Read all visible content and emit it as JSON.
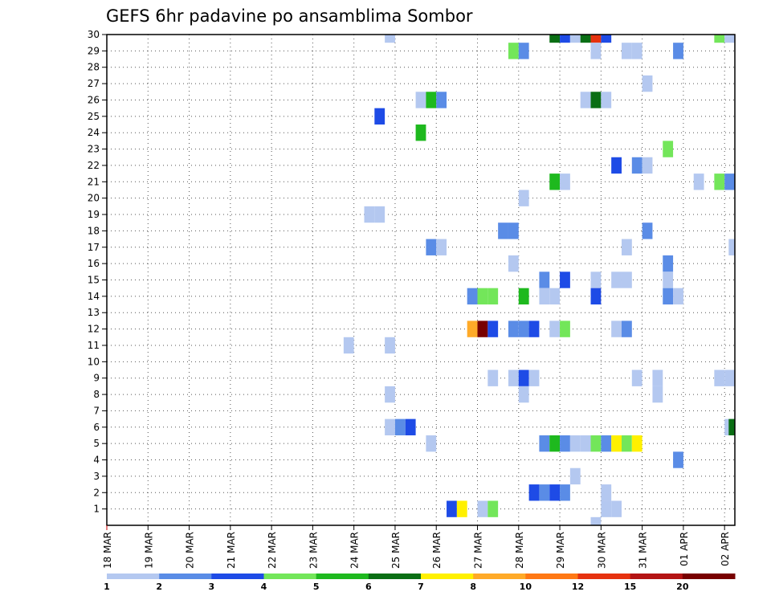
{
  "chart_data": {
    "type": "heatmap",
    "title": "GEFS 6hr padavine po ansamblima Sombor",
    "xlabel": "",
    "ylabel": "",
    "x_tick_labels": [
      "18 MAR",
      "19 MAR",
      "20 MAR",
      "21 MAR",
      "22 MAR",
      "23 MAR",
      "24 MAR",
      "25 MAR",
      "26 MAR",
      "27 MAR",
      "28 MAR",
      "29 MAR",
      "30 MAR",
      "31 MAR",
      "01 APR",
      "02 APR"
    ],
    "y_tick_labels": [
      "1",
      "2",
      "3",
      "4",
      "5",
      "6",
      "7",
      "8",
      "9",
      "10",
      "11",
      "12",
      "13",
      "14",
      "15",
      "16",
      "17",
      "18",
      "19",
      "20",
      "21",
      "22",
      "23",
      "24",
      "25",
      "26",
      "27",
      "28",
      "29",
      "30"
    ],
    "xlim": [
      0,
      61
    ],
    "ylim": [
      0,
      30
    ],
    "grid": true,
    "colorbar": {
      "labels": [
        "1",
        "2",
        "3",
        "4",
        "5",
        "6",
        "7",
        "8",
        "10",
        "12",
        "15",
        "20"
      ],
      "colors": [
        "#b4c8f0",
        "#5a8ce6",
        "#1e4be6",
        "#73e65a",
        "#1eb91e",
        "#0a6e14",
        "#fff000",
        "#ffaa28",
        "#ff7814",
        "#e6320f",
        "#b41414",
        "#780000"
      ]
    },
    "cells": [
      {
        "x": 27.5,
        "y": 30,
        "v": 1
      },
      {
        "x": 43.5,
        "y": 30,
        "v": 6
      },
      {
        "x": 44.5,
        "y": 30,
        "v": 3
      },
      {
        "x": 45.5,
        "y": 30,
        "v": 1
      },
      {
        "x": 46.5,
        "y": 30,
        "v": 6
      },
      {
        "x": 47.5,
        "y": 30,
        "v": 12
      },
      {
        "x": 48.5,
        "y": 30,
        "v": 3
      },
      {
        "x": 59.5,
        "y": 30,
        "v": 4
      },
      {
        "x": 60.5,
        "y": 30,
        "v": 1
      },
      {
        "x": 39.5,
        "y": 29,
        "v": 4
      },
      {
        "x": 40.5,
        "y": 29,
        "v": 2
      },
      {
        "x": 47.5,
        "y": 29,
        "v": 1
      },
      {
        "x": 50.5,
        "y": 29,
        "v": 1
      },
      {
        "x": 51.5,
        "y": 29,
        "v": 1
      },
      {
        "x": 55.5,
        "y": 29,
        "v": 2
      },
      {
        "x": 52.5,
        "y": 27,
        "v": 1
      },
      {
        "x": 30.5,
        "y": 26,
        "v": 1
      },
      {
        "x": 31.5,
        "y": 26,
        "v": 5
      },
      {
        "x": 32.5,
        "y": 26,
        "v": 2
      },
      {
        "x": 46.5,
        "y": 26,
        "v": 1
      },
      {
        "x": 47.5,
        "y": 26,
        "v": 6
      },
      {
        "x": 48.5,
        "y": 26,
        "v": 1
      },
      {
        "x": 26.5,
        "y": 25,
        "v": 3
      },
      {
        "x": 30.5,
        "y": 24,
        "v": 5
      },
      {
        "x": 54.5,
        "y": 23,
        "v": 4
      },
      {
        "x": 49.5,
        "y": 22,
        "v": 3
      },
      {
        "x": 51.5,
        "y": 22,
        "v": 2
      },
      {
        "x": 52.5,
        "y": 22,
        "v": 1
      },
      {
        "x": 43.5,
        "y": 21,
        "v": 5
      },
      {
        "x": 44.5,
        "y": 21,
        "v": 1
      },
      {
        "x": 57.5,
        "y": 21,
        "v": 1
      },
      {
        "x": 59.5,
        "y": 21,
        "v": 4
      },
      {
        "x": 60.5,
        "y": 21,
        "v": 2
      },
      {
        "x": 40.5,
        "y": 20,
        "v": 1
      },
      {
        "x": 25.5,
        "y": 19,
        "v": 1
      },
      {
        "x": 26.5,
        "y": 19,
        "v": 1
      },
      {
        "x": 38.5,
        "y": 18,
        "v": 2
      },
      {
        "x": 39.5,
        "y": 18,
        "v": 2
      },
      {
        "x": 52.5,
        "y": 18,
        "v": 2
      },
      {
        "x": 31.5,
        "y": 17,
        "v": 2
      },
      {
        "x": 32.5,
        "y": 17,
        "v": 1
      },
      {
        "x": 50.5,
        "y": 17,
        "v": 1
      },
      {
        "x": 60.9,
        "y": 17,
        "v": 1
      },
      {
        "x": 39.5,
        "y": 16,
        "v": 1
      },
      {
        "x": 54.5,
        "y": 16,
        "v": 2
      },
      {
        "x": 42.5,
        "y": 15,
        "v": 2
      },
      {
        "x": 44.5,
        "y": 15,
        "v": 3
      },
      {
        "x": 47.5,
        "y": 15,
        "v": 1
      },
      {
        "x": 49.5,
        "y": 15,
        "v": 1
      },
      {
        "x": 50.5,
        "y": 15,
        "v": 1
      },
      {
        "x": 54.5,
        "y": 15,
        "v": 1
      },
      {
        "x": 35.5,
        "y": 14,
        "v": 2
      },
      {
        "x": 36.5,
        "y": 14,
        "v": 4
      },
      {
        "x": 37.5,
        "y": 14,
        "v": 4
      },
      {
        "x": 40.5,
        "y": 14,
        "v": 5
      },
      {
        "x": 42.5,
        "y": 14,
        "v": 1
      },
      {
        "x": 43.5,
        "y": 14,
        "v": 1
      },
      {
        "x": 47.5,
        "y": 14,
        "v": 3
      },
      {
        "x": 54.5,
        "y": 14,
        "v": 2
      },
      {
        "x": 55.5,
        "y": 14,
        "v": 1
      },
      {
        "x": 35.5,
        "y": 12,
        "v": 8
      },
      {
        "x": 36.5,
        "y": 12,
        "v": 20
      },
      {
        "x": 37.5,
        "y": 12,
        "v": 3
      },
      {
        "x": 39.5,
        "y": 12,
        "v": 2
      },
      {
        "x": 40.5,
        "y": 12,
        "v": 2
      },
      {
        "x": 41.5,
        "y": 12,
        "v": 3
      },
      {
        "x": 43.5,
        "y": 12,
        "v": 1
      },
      {
        "x": 44.5,
        "y": 12,
        "v": 4
      },
      {
        "x": 49.5,
        "y": 12,
        "v": 1
      },
      {
        "x": 50.5,
        "y": 12,
        "v": 2
      },
      {
        "x": 23.5,
        "y": 11,
        "v": 1
      },
      {
        "x": 27.5,
        "y": 11,
        "v": 1
      },
      {
        "x": 37.5,
        "y": 9,
        "v": 1
      },
      {
        "x": 39.5,
        "y": 9,
        "v": 1
      },
      {
        "x": 40.5,
        "y": 9,
        "v": 3
      },
      {
        "x": 41.5,
        "y": 9,
        "v": 1
      },
      {
        "x": 51.5,
        "y": 9,
        "v": 1
      },
      {
        "x": 53.5,
        "y": 9,
        "v": 1
      },
      {
        "x": 59.5,
        "y": 9,
        "v": 1
      },
      {
        "x": 60.5,
        "y": 9,
        "v": 1
      },
      {
        "x": 27.5,
        "y": 8,
        "v": 1
      },
      {
        "x": 40.5,
        "y": 8,
        "v": 1
      },
      {
        "x": 53.5,
        "y": 8,
        "v": 1
      },
      {
        "x": 27.5,
        "y": 6,
        "v": 1
      },
      {
        "x": 28.5,
        "y": 6,
        "v": 2
      },
      {
        "x": 29.5,
        "y": 6,
        "v": 3
      },
      {
        "x": 60.5,
        "y": 6,
        "v": 1
      },
      {
        "x": 60.9,
        "y": 6,
        "v": 6
      },
      {
        "x": 31.5,
        "y": 5,
        "v": 1
      },
      {
        "x": 42.5,
        "y": 5,
        "v": 2
      },
      {
        "x": 43.5,
        "y": 5,
        "v": 5
      },
      {
        "x": 44.5,
        "y": 5,
        "v": 2
      },
      {
        "x": 45.5,
        "y": 5,
        "v": 1
      },
      {
        "x": 46.5,
        "y": 5,
        "v": 1
      },
      {
        "x": 47.5,
        "y": 5,
        "v": 4
      },
      {
        "x": 48.5,
        "y": 5,
        "v": 2
      },
      {
        "x": 49.5,
        "y": 5,
        "v": 7
      },
      {
        "x": 50.5,
        "y": 5,
        "v": 4
      },
      {
        "x": 51.5,
        "y": 5,
        "v": 7
      },
      {
        "x": 55.5,
        "y": 4,
        "v": 2
      },
      {
        "x": 45.5,
        "y": 3,
        "v": 1
      },
      {
        "x": 41.5,
        "y": 2,
        "v": 3
      },
      {
        "x": 42.5,
        "y": 2,
        "v": 2
      },
      {
        "x": 43.5,
        "y": 2,
        "v": 3
      },
      {
        "x": 44.5,
        "y": 2,
        "v": 2
      },
      {
        "x": 48.5,
        "y": 2,
        "v": 1
      },
      {
        "x": 33.5,
        "y": 1,
        "v": 3
      },
      {
        "x": 34.5,
        "y": 1,
        "v": 7
      },
      {
        "x": 36.5,
        "y": 1,
        "v": 1
      },
      {
        "x": 37.5,
        "y": 1,
        "v": 4
      },
      {
        "x": 48.5,
        "y": 1,
        "v": 1
      },
      {
        "x": 49.5,
        "y": 1,
        "v": 1
      },
      {
        "x": 47.5,
        "y": 0,
        "v": 1
      }
    ]
  }
}
